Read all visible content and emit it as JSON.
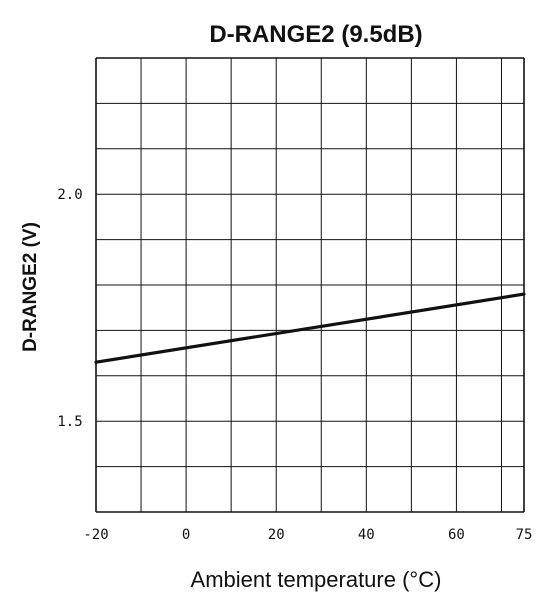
{
  "chart_data": {
    "type": "line",
    "title": "D-RANGE2 (9.5dB)",
    "xlabel": "Ambient temperature (°C)",
    "ylabel": "D-RANGE2 (V)",
    "xlim": [
      -20,
      75
    ],
    "ylim": [
      1.3,
      2.3
    ],
    "x_tick_labels": [
      {
        "value": -20,
        "label": "-20"
      },
      {
        "value": 0,
        "label": "0"
      },
      {
        "value": 20,
        "label": "20"
      },
      {
        "value": 40,
        "label": "40"
      },
      {
        "value": 60,
        "label": "60"
      },
      {
        "value": 75,
        "label": "75"
      }
    ],
    "x_gridlines": [
      -20,
      -10,
      0,
      10,
      20,
      30,
      40,
      50,
      60,
      70,
      75
    ],
    "y_tick_labels": [
      {
        "value": 2.0,
        "label": "2.0"
      },
      {
        "value": 1.5,
        "label": "1.5"
      }
    ],
    "y_gridlines": [
      1.3,
      1.4,
      1.5,
      1.6,
      1.7,
      1.8,
      1.9,
      2.0,
      2.1,
      2.2,
      2.3
    ],
    "grid": true,
    "series": [
      {
        "x": [
          -20,
          75
        ],
        "y": [
          1.63,
          1.78
        ],
        "color": "#111111"
      }
    ]
  }
}
